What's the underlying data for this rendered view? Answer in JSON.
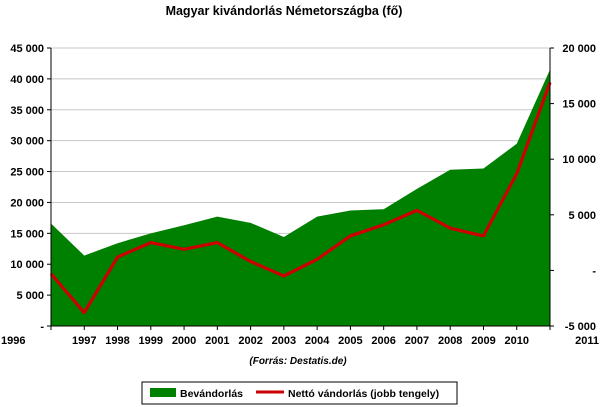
{
  "chart_data": {
    "type": "area",
    "title": "Magyar kivándorlás Németországba (fő)",
    "source": "(Forrás: Destatis.de)",
    "categories": [
      "1996",
      "1997",
      "1998",
      "1999",
      "2000",
      "2001",
      "2002",
      "2003",
      "2004",
      "2005",
      "2006",
      "2007",
      "2008",
      "2009",
      "2010",
      "2011"
    ],
    "series": [
      {
        "name": "Bevándorlás",
        "kind": "area",
        "axis": "left",
        "color": "#008000",
        "values": [
          16600,
          11400,
          13400,
          15000,
          16300,
          17700,
          16700,
          14400,
          17700,
          18700,
          18900,
          22200,
          25300,
          25500,
          29500,
          41500
        ]
      },
      {
        "name": "Nettó vándorlás (jobb tengely)",
        "kind": "line",
        "axis": "right",
        "color": "#cc0000",
        "values": [
          -300,
          -3800,
          1200,
          2500,
          1900,
          2500,
          800,
          -500,
          1000,
          3100,
          4100,
          5400,
          3800,
          3100,
          8700,
          16900
        ]
      }
    ],
    "y_left": {
      "min": 0,
      "max": 45000,
      "ticks": [
        0,
        5000,
        10000,
        15000,
        20000,
        25000,
        30000,
        35000,
        40000,
        45000
      ],
      "tick_labels": [
        "-",
        "5 000",
        "10 000",
        "15 000",
        "20 000",
        "25 000",
        "30 000",
        "35 000",
        "40 000",
        "45 000"
      ]
    },
    "y_right": {
      "min": -5000,
      "max": 20000,
      "ticks": [
        -5000,
        0,
        5000,
        10000,
        15000,
        20000
      ],
      "tick_labels": [
        "-5 000",
        "-",
        "5 000",
        "10 000",
        "15 000",
        "20 000"
      ]
    },
    "gridlines": true,
    "legend_position": "bottom"
  }
}
